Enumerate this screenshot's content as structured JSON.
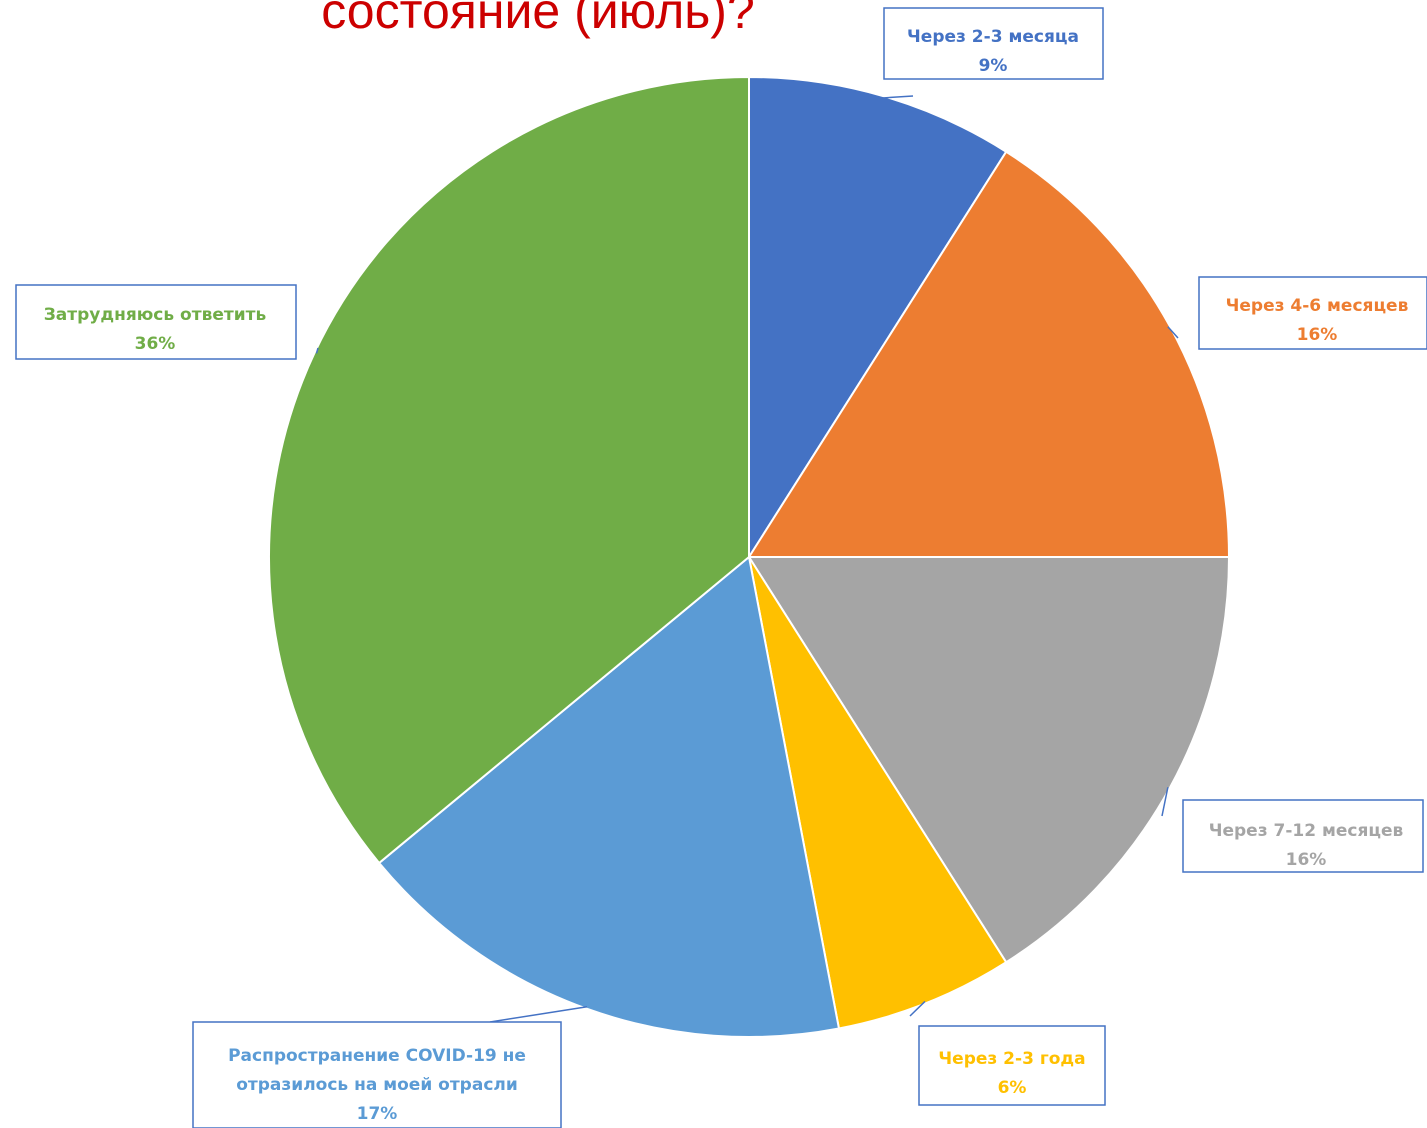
{
  "chart_data": {
    "type": "pie",
    "title": "состояние (июль)?",
    "title_color": "#cc0000",
    "legend": "none",
    "slices": [
      {
        "label": "Через 2-3 месяца",
        "value": 9,
        "value_label": "9%",
        "color": "#4472c4"
      },
      {
        "label": "Через 4-6 месяцев",
        "value": 16,
        "value_label": "16%",
        "color": "#ed7d31"
      },
      {
        "label": "Через 7-12 месяцев",
        "value": 16,
        "value_label": "16%",
        "color": "#a5a5a5"
      },
      {
        "label": "Через 2-3 года",
        "value": 6,
        "value_label": "6%",
        "color": "#ffc000"
      },
      {
        "label": [
          "Распространение COVID-19 не",
          "отразилось на моей отрасли"
        ],
        "value": 17,
        "value_label": "17%",
        "color": "#5b9bd5"
      },
      {
        "label": "Затрудняюсь ответить",
        "value": 36,
        "value_label": "36%",
        "color": "#70ad47"
      }
    ]
  }
}
